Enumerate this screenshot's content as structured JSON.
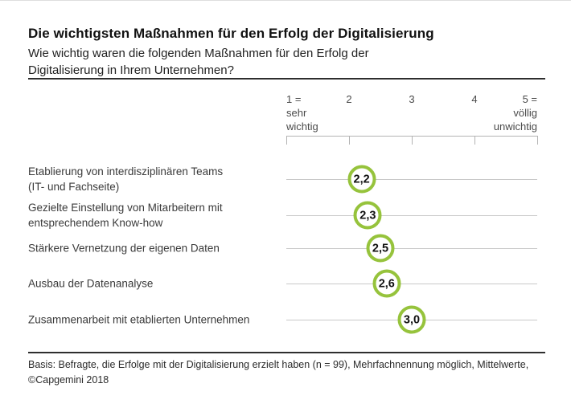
{
  "header": {
    "title": "Die wichtigsten Maßnahmen für den Erfolg der Digitalisierung",
    "subtitle": "Wie wichtig waren die folgenden Maßnahmen für den Erfolg der\nDigitalisierung in Ihrem Unternehmen?"
  },
  "chart_data": {
    "type": "scatter",
    "title": "Die wichtigsten Maßnahmen für den Erfolg der Digitalisierung",
    "subtitle": "Wie wichtig waren die folgenden Maßnahmen für den Erfolg der Digitalisierung in Ihrem Unternehmen?",
    "axis": {
      "min": 1,
      "max": 5,
      "ticks": [
        1,
        2,
        3,
        4,
        5
      ],
      "tick_labels": [
        "1 =\nsehr\nwichtig",
        "2",
        "3",
        "4",
        "5 =\nvöllig\nunwichtig"
      ]
    },
    "categories": [
      "Etablierung von interdisziplinären Teams (IT- und Fachseite)",
      "Gezielte Einstellung von Mitarbeitern mit entsprechendem Know-how",
      "Stärkere Vernetzung der eigenen Daten",
      "Ausbau der Datenanalyse",
      "Zusammenarbeit mit etablierten Unternehmen"
    ],
    "values": [
      2.2,
      2.3,
      2.5,
      2.6,
      3.0
    ],
    "marker_color": "#96c33c",
    "rows": [
      {
        "label": "Etablierung von interdisziplinären Teams\n(IT- und Fachseite)",
        "value": 2.2,
        "value_label": "2,2"
      },
      {
        "label": "Gezielte Einstellung von Mitarbeitern mit\nentsprechendem Know-how",
        "value": 2.3,
        "value_label": "2,3"
      },
      {
        "label": "Stärkere Vernetzung der eigenen Daten",
        "value": 2.5,
        "value_label": "2,5"
      },
      {
        "label": "Ausbau der Datenanalyse",
        "value": 2.6,
        "value_label": "2,6"
      },
      {
        "label": "Zusammenarbeit mit etablierten Unternehmen",
        "value": 3.0,
        "value_label": "3,0"
      }
    ]
  },
  "footer": {
    "basis": "Basis: Befragte, die Erfolge mit der Digitalisierung erzielt haben (n = 99), Mehrfachnennung möglich, Mittelwerte,",
    "copyright": "©Capgemini 2018"
  }
}
